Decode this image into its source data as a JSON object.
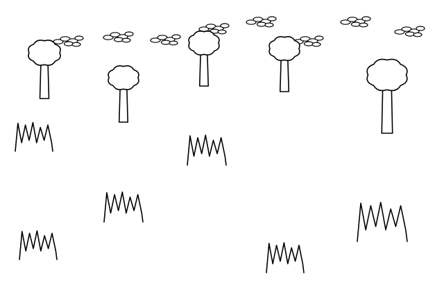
{
  "scene": {
    "background_color": "#ffffff",
    "line_color": "#000000",
    "elements": [
      "cloud-icon",
      "cloud-icon",
      "cloud-icon",
      "cloud-icon",
      "cloud-icon",
      "cloud-icon",
      "cloud-icon",
      "cloud-icon",
      "tree-icon",
      "tree-icon",
      "tree-icon",
      "tree-icon",
      "tree-icon",
      "grass-tuft-icon",
      "grass-tuft-icon",
      "grass-tuft-icon",
      "grass-tuft-icon",
      "grass-tuft-icon",
      "grass-tuft-icon"
    ]
  }
}
